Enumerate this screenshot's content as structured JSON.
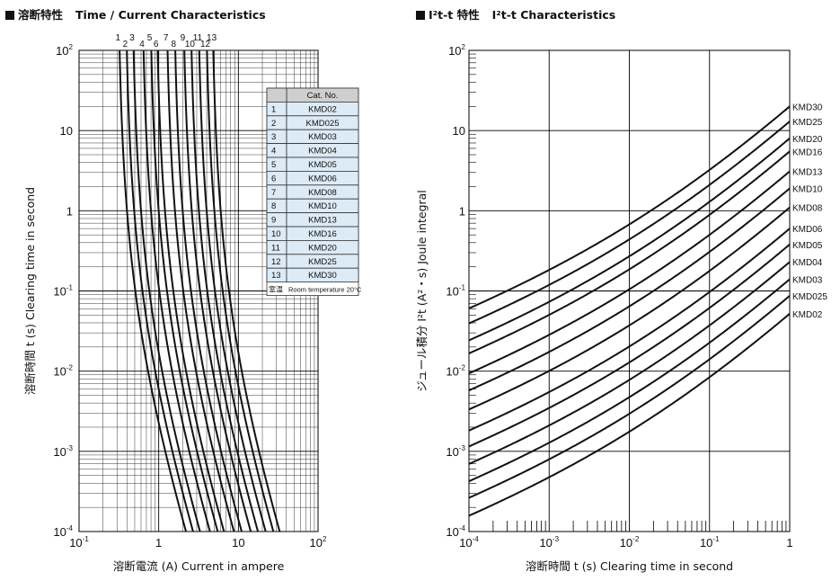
{
  "left_title": {
    "jp": "溶断特性",
    "en": "Time / Current Characteristics"
  },
  "right_title": {
    "jp": "I²t-t 特性",
    "en": "I²t-t Characteristics"
  },
  "chart_data": [
    {
      "type": "line",
      "title": "溶断特性 Time / Current Characteristics",
      "xlabel": "溶断電流 (A)  Current in ampere",
      "ylabel": "溶断時間 t (s)  Clearing time in second",
      "xscale": "log",
      "yscale": "log",
      "xlim": [
        0.1,
        100
      ],
      "ylim": [
        0.0001,
        100
      ],
      "x_ticks": [
        [
          "10",
          "-1"
        ],
        [
          "1",
          ""
        ],
        [
          "10",
          ""
        ],
        [
          "10",
          "2"
        ]
      ],
      "y_ticks": [
        [
          "10",
          "2"
        ],
        [
          "10",
          ""
        ],
        [
          "1",
          ""
        ],
        [
          "10",
          "-1"
        ],
        [
          "10",
          "-2"
        ],
        [
          "10",
          "-3"
        ],
        [
          "10",
          "-4"
        ]
      ],
      "grid": true,
      "curve_numbers": [
        "1",
        "2",
        "3",
        "4",
        "5",
        "6",
        "7",
        "8",
        "9",
        "10",
        "11",
        "12",
        "13"
      ],
      "table": {
        "header": "Cat. No.",
        "rows": [
          [
            "1",
            "KMD02"
          ],
          [
            "2",
            "KMD025"
          ],
          [
            "3",
            "KMD03"
          ],
          [
            "4",
            "KMD04"
          ],
          [
            "5",
            "KMD05"
          ],
          [
            "6",
            "KMD06"
          ],
          [
            "7",
            "KMD08"
          ],
          [
            "8",
            "KMD10"
          ],
          [
            "9",
            "KMD13"
          ],
          [
            "10",
            "KMD16"
          ],
          [
            "11",
            "KMD20"
          ],
          [
            "12",
            "KMD25"
          ],
          [
            "13",
            "KMD30"
          ]
        ],
        "footnote_jp": "室温",
        "footnote_en": "Room temperature 20°C"
      },
      "series": [
        {
          "name": "1",
          "ia": 0.3,
          "ib": 2.2
        },
        {
          "name": "2",
          "ia": 0.37,
          "ib": 2.7
        },
        {
          "name": "3",
          "ia": 0.45,
          "ib": 3.3
        },
        {
          "name": "4",
          "ia": 0.6,
          "ib": 4.4
        },
        {
          "name": "5",
          "ia": 0.75,
          "ib": 5.5
        },
        {
          "name": "6",
          "ia": 0.9,
          "ib": 6.6
        },
        {
          "name": "7",
          "ia": 1.2,
          "ib": 8.8
        },
        {
          "name": "8",
          "ia": 1.5,
          "ib": 11
        },
        {
          "name": "9",
          "ia": 1.95,
          "ib": 14.3
        },
        {
          "name": "10",
          "ia": 2.4,
          "ib": 17.6
        },
        {
          "name": "11",
          "ia": 3.0,
          "ib": 22
        },
        {
          "name": "12",
          "ia": 3.75,
          "ib": 27.5
        },
        {
          "name": "13",
          "ia": 4.5,
          "ib": 33
        }
      ]
    },
    {
      "type": "line",
      "title": "I²t-t 特性 I²t-t Characteristics",
      "xlabel": "溶断時間 t (s)  Clearing time in second",
      "ylabel": "ジュール積分 I²t (A²・s)  Joule integral",
      "xscale": "log",
      "yscale": "log",
      "xlim": [
        0.0001,
        1
      ],
      "ylim": [
        0.0001,
        100
      ],
      "x_ticks": [
        [
          "10",
          "-4"
        ],
        [
          "10",
          "-3"
        ],
        [
          "10",
          "-2"
        ],
        [
          "10",
          "-1"
        ],
        [
          "1",
          ""
        ]
      ],
      "y_ticks": [
        [
          "10",
          "2"
        ],
        [
          "10",
          ""
        ],
        [
          "1",
          ""
        ],
        [
          "10",
          "-1"
        ],
        [
          "10",
          "-2"
        ],
        [
          "10",
          "-3"
        ],
        [
          "10",
          "-4"
        ]
      ],
      "grid": true,
      "series": [
        {
          "name": "KMD02",
          "ia": 0.3,
          "y_at_1s": 0.052
        },
        {
          "name": "KMD025",
          "ia": 0.37,
          "y_at_1s": 0.087
        },
        {
          "name": "KMD03",
          "ia": 0.45,
          "y_at_1s": 0.14
        },
        {
          "name": "KMD04",
          "ia": 0.6,
          "y_at_1s": 0.23
        },
        {
          "name": "KMD05",
          "ia": 0.75,
          "y_at_1s": 0.38
        },
        {
          "name": "KMD06",
          "ia": 0.9,
          "y_at_1s": 0.6
        },
        {
          "name": "KMD08",
          "ia": 1.2,
          "y_at_1s": 1.1
        },
        {
          "name": "KMD10",
          "ia": 1.5,
          "y_at_1s": 1.9
        },
        {
          "name": "KMD13",
          "ia": 1.95,
          "y_at_1s": 3.1
        },
        {
          "name": "KMD16",
          "ia": 2.4,
          "y_at_1s": 5.5
        },
        {
          "name": "KMD20",
          "ia": 3.0,
          "y_at_1s": 8.0
        },
        {
          "name": "KMD25",
          "ia": 3.75,
          "y_at_1s": 13.0
        },
        {
          "name": "KMD30",
          "ia": 4.5,
          "y_at_1s": 20.0
        }
      ]
    }
  ]
}
